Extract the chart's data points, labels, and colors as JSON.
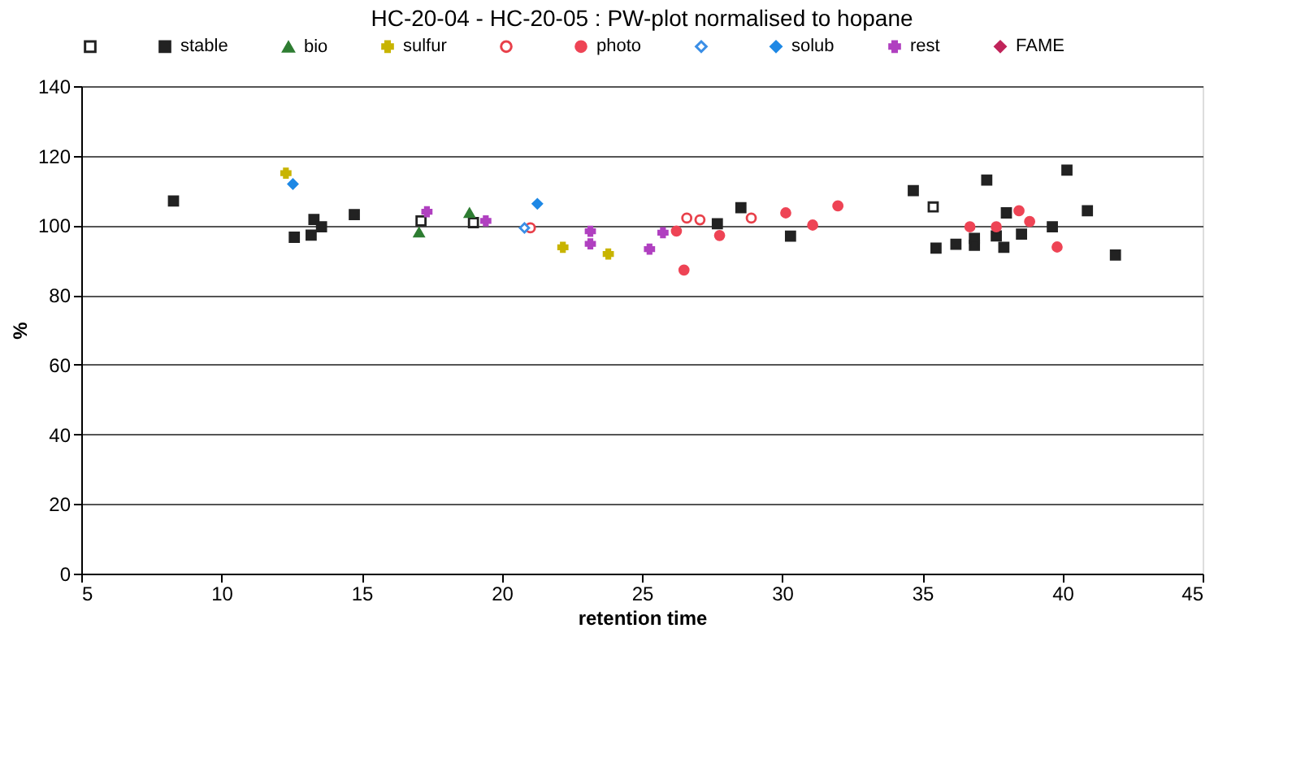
{
  "chart_data": {
    "type": "scatter",
    "title": "HC-20-04  -  HC-20-05 :  PW-plot normalised to hopane",
    "xlabel": "retention time",
    "ylabel": "%",
    "xlim": [
      5,
      45
    ],
    "xticks": [
      5,
      10,
      15,
      20,
      25,
      30,
      35,
      40,
      45
    ],
    "ylim": [
      0,
      140
    ],
    "yticks": [
      0,
      20,
      40,
      60,
      80,
      100,
      120,
      140
    ],
    "grid": "y",
    "legend": "top",
    "series": [
      {
        "color": "#222222",
        "marker": "square",
        "x": [
          17.12,
          18.99,
          35.39
        ],
        "values": [
          101.3,
          100.8,
          105.3
        ]
      },
      {
        "name": "stable",
        "color": "#222222",
        "marker": "square",
        "x": [
          8.29,
          12.6,
          13.2,
          13.3,
          13.57,
          14.74,
          27.69,
          28.53,
          30.3,
          34.68,
          35.49,
          36.2,
          36.86,
          36.86,
          37.3,
          37.64,
          37.91,
          38.0,
          38.54,
          39.64,
          40.16,
          40.89,
          41.89
        ],
        "values": [
          107,
          96.6,
          97.2,
          101.7,
          99.6,
          103.1,
          100.5,
          105.1,
          96.9,
          110,
          93.5,
          94.6,
          96.3,
          94.3,
          113,
          97,
          93.7,
          103.6,
          97.5,
          99.6,
          115.9,
          104.2,
          91.5
        ]
      },
      {
        "name": "bio",
        "color": "#2e7d32",
        "marker": "triangle",
        "x": [
          17.05,
          18.85
        ],
        "values": [
          98,
          103.6
        ]
      },
      {
        "name": "sulfur",
        "color": "#c8b400",
        "marker": "cross",
        "x": [
          12.3,
          22.18,
          23.8
        ],
        "values": [
          115,
          93.7,
          91.8
        ]
      },
      {
        "color": "#e8404a",
        "marker": "circle",
        "x": [
          21.02,
          26.6,
          27.07,
          28.9
        ],
        "values": [
          99.3,
          102.1,
          101.6,
          102.1
        ]
      },
      {
        "name": "photo",
        "color": "#ee4455",
        "marker": "circle",
        "x": [
          26.23,
          26.5,
          27.77,
          30.13,
          31.09,
          31.99,
          36.7,
          37.64,
          38.45,
          38.83,
          39.81
        ],
        "values": [
          98.4,
          87.2,
          97.1,
          103.6,
          100.1,
          105.6,
          99.6,
          99.6,
          104.2,
          101.1,
          93.8
        ]
      },
      {
        "color": "#3a8ee6",
        "marker": "diamond",
        "x": [
          20.81
        ],
        "values": [
          99.3
        ]
      },
      {
        "name": "solub",
        "color": "#1e88e5",
        "marker": "diamond",
        "x": [
          12.55,
          21.27
        ],
        "values": [
          111.9,
          106.2
        ]
      },
      {
        "name": "rest",
        "color": "#b040c0",
        "marker": "cross",
        "x": [
          17.33,
          19.43,
          23.16,
          23.16,
          25.27,
          25.75
        ],
        "values": [
          103.9,
          101.3,
          98.3,
          94.7,
          93.2,
          97.9
        ]
      },
      {
        "name": "FAME",
        "color": "#c0245a",
        "marker": "diamond"
      }
    ]
  }
}
